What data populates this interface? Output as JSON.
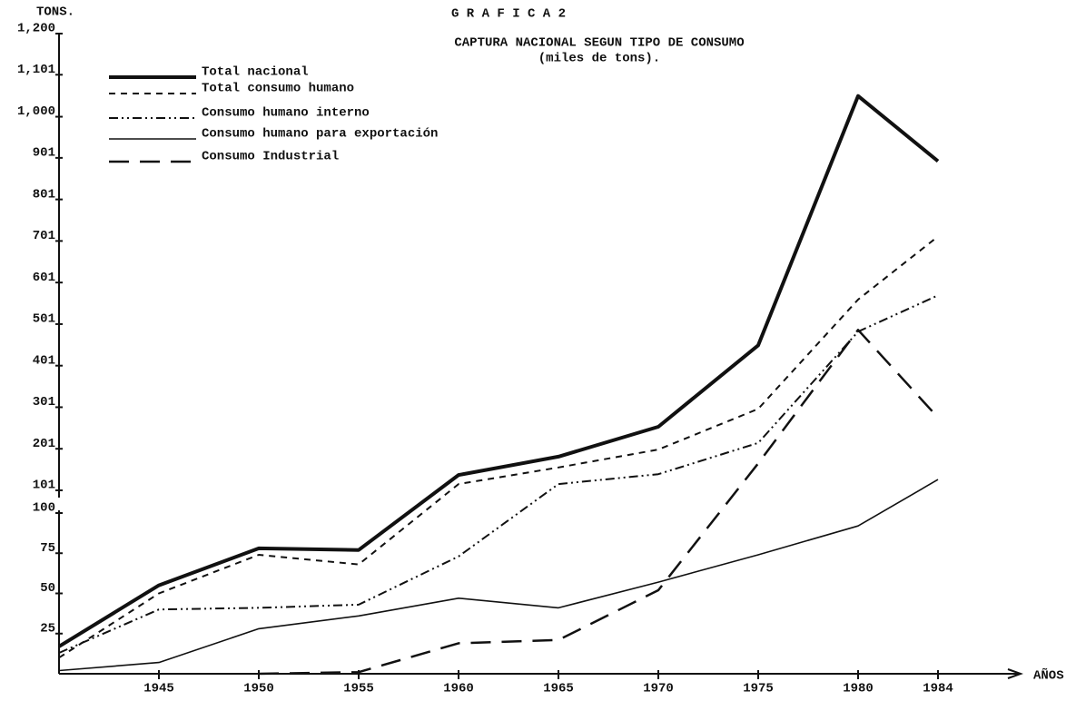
{
  "chart_data": {
    "type": "line",
    "title": "G R A F I C A   2",
    "subtitle": [
      "CAPTURA NACIONAL SEGUN TIPO DE  CONSUMO",
      "(miles de tons)."
    ],
    "ylabel": "TONS.",
    "xlabel": "AÑOS",
    "x": [
      1940,
      1945,
      1950,
      1955,
      1960,
      1965,
      1970,
      1975,
      1980,
      1984
    ],
    "xlim": [
      1940,
      1988
    ],
    "xticks": [
      1945,
      1950,
      1955,
      1960,
      1965,
      1970,
      1975,
      1980,
      1984
    ],
    "ylim_lower": [
      0,
      100
    ],
    "ylim_upper": [
      101,
      1200
    ],
    "yticks": [
      25,
      50,
      75,
      100,
      101,
      201,
      301,
      401,
      501,
      601,
      701,
      801,
      901,
      {
        "value": 1000,
        "label": "1,000"
      },
      {
        "value": 1101,
        "label": "1,101"
      },
      {
        "value": 1200,
        "label": "1,200"
      }
    ],
    "series": [
      {
        "name": "Total nacional",
        "color": "#111111",
        "line_style": "thick",
        "values": [
          17,
          55,
          78,
          77,
          138,
          182,
          254,
          450,
          1050,
          893
        ]
      },
      {
        "name": "Total consumo humano",
        "color": "#111111",
        "line_style": "short-dash",
        "values": [
          10,
          50,
          74,
          68,
          116,
          156,
          199,
          297,
          560,
          712
        ]
      },
      {
        "name": "Consumo humano interno",
        "color": "#111111",
        "line_style": "dash-dot-dot",
        "values": [
          13,
          40,
          41,
          43,
          73,
          116,
          140,
          215,
          483,
          570
        ]
      },
      {
        "name": "Consumo humano para exportación",
        "color": "#111111",
        "line_style": "solid",
        "values": [
          2,
          7,
          28,
          36,
          47,
          41,
          57,
          74,
          92,
          127
        ]
      },
      {
        "name": "Consumo Industrial",
        "color": "#111111",
        "line_style": "long-dash",
        "values": [
          null,
          null,
          0,
          1,
          19,
          21,
          52,
          166,
          487,
          276
        ]
      }
    ]
  }
}
